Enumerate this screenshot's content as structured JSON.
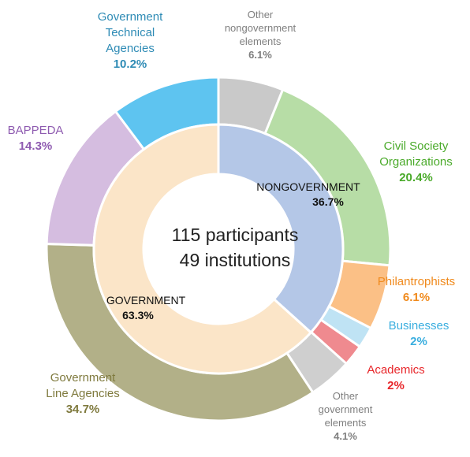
{
  "chart_data": {
    "type": "pie",
    "center_text": [
      "115 participants",
      "49 institutions"
    ],
    "inner_ring": [
      {
        "label": "NONGOVERNMENT",
        "value": 36.7,
        "value_text": "36.7%",
        "color": "#b4c7e7"
      },
      {
        "label": "GOVERNMENT",
        "value": 63.3,
        "value_text": "63.3%",
        "color": "#fbe5c8"
      }
    ],
    "outer_ring": [
      {
        "label": "Other nongovernment elements",
        "value": 6.1,
        "value_text": "6.1%",
        "color": "#c9c9c9",
        "label_color": "#7f7f7f"
      },
      {
        "label": "Civil Society Organizations",
        "value": 20.4,
        "value_text": "20.4%",
        "color": "#b7dda6",
        "label_color": "#4aaa2a"
      },
      {
        "label": "Philantrophists",
        "value": 6.1,
        "value_text": "6.1%",
        "color": "#fbc086",
        "label_color": "#f08a1d"
      },
      {
        "label": "Businesses",
        "value": 2,
        "value_text": "2%",
        "color": "#bfe3f4",
        "label_color": "#3aaedf"
      },
      {
        "label": "Academics",
        "value": 2,
        "value_text": "2%",
        "color": "#ef8a8f",
        "label_color": "#e8262a"
      },
      {
        "label": "Other government elements",
        "value": 4.1,
        "value_text": "4.1%",
        "color": "#cfcfcf",
        "label_color": "#7f7f7f"
      },
      {
        "label": "Government Line Agencies",
        "value": 34.7,
        "value_text": "34.7%",
        "color": "#b2b088",
        "label_color": "#7f7a3e"
      },
      {
        "label": "BAPPEDA",
        "value": 14.3,
        "value_text": "14.3%",
        "color": "#d5bde0",
        "label_color": "#8e5bb0"
      },
      {
        "label": "Government Technical Agencies",
        "value": 10.2,
        "value_text": "10.2%",
        "color": "#5ec4f0",
        "label_color": "#2e8bb5"
      }
    ]
  }
}
